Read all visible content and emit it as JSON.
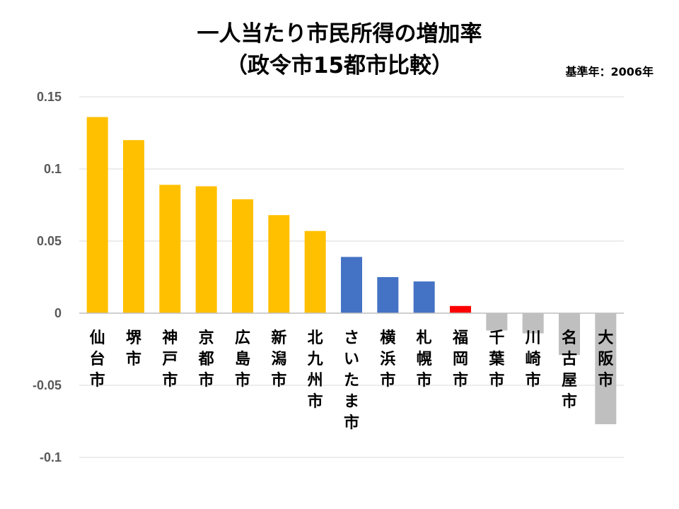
{
  "title": "一人当たり市民所得の増加率",
  "subtitle": "（政令市15都市比較）",
  "note": "基準年：2006年",
  "colors": {
    "gold": "#ffc000",
    "blue": "#4472c4",
    "red": "#ff0000",
    "gray": "#bfbfbf",
    "grid": "#d9d9d9",
    "axis": "#bfbfbf"
  },
  "chart_data": {
    "type": "bar",
    "title": "一人当たり市民所得の増加率（政令市15都市比較）",
    "xlabel": "",
    "ylabel": "",
    "ylim": [
      -0.1,
      0.15
    ],
    "yticks": [
      0.15,
      0.1,
      0.05,
      0,
      -0.05,
      -0.1
    ],
    "ytick_labels": [
      "0.15",
      "0.1",
      "0.05",
      "0",
      "-0.05",
      "-0.1"
    ],
    "grid": true,
    "categories": [
      "仙台市",
      "堺市",
      "神戸市",
      "京都市",
      "広島市",
      "新潟市",
      "北九州市",
      "さいたま市",
      "横浜市",
      "札幌市",
      "福岡市",
      "千葉市",
      "川崎市",
      "名古屋市",
      "大阪市"
    ],
    "values": [
      0.136,
      0.12,
      0.089,
      0.088,
      0.079,
      0.068,
      0.057,
      0.039,
      0.025,
      0.022,
      0.005,
      -0.012,
      -0.014,
      -0.029,
      -0.077
    ],
    "bar_colors": [
      "gold",
      "gold",
      "gold",
      "gold",
      "gold",
      "gold",
      "gold",
      "blue",
      "blue",
      "blue",
      "red",
      "gray",
      "gray",
      "gray",
      "gray"
    ]
  }
}
